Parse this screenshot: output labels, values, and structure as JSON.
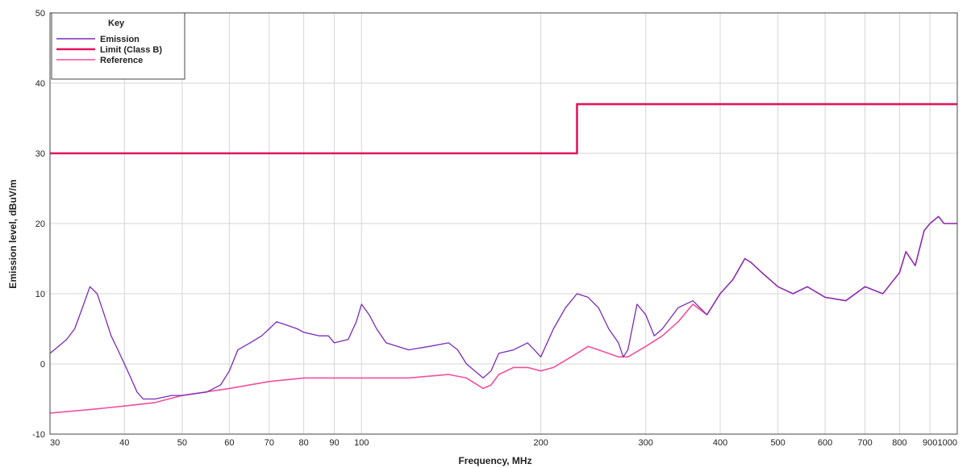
{
  "chart_data": {
    "type": "line",
    "title": "",
    "xlabel": "Frequency, MHz",
    "ylabel": "Emission level, dBuV/m",
    "xscale": "log",
    "xlim": [
      30,
      1000
    ],
    "ylim": [
      -10,
      50
    ],
    "x_ticks": [
      30,
      40,
      50,
      60,
      70,
      80,
      90,
      100,
      200,
      300,
      400,
      500,
      600,
      700,
      800,
      900,
      1000
    ],
    "y_ticks": [
      -10,
      0,
      10,
      20,
      30,
      40,
      50
    ],
    "grid": true,
    "legend": {
      "title": "Key",
      "position": "top-left"
    },
    "series": [
      {
        "name": "Emission",
        "color": "#7a2bb8",
        "x": [
          30,
          31,
          32,
          33,
          34,
          35,
          36,
          37,
          38,
          39,
          40,
          41,
          42,
          43,
          45,
          48,
          50,
          55,
          58,
          60,
          62,
          65,
          68,
          70,
          72,
          75,
          78,
          80,
          85,
          88,
          90,
          95,
          98,
          100,
          103,
          106,
          110,
          120,
          130,
          140,
          145,
          150,
          160,
          165,
          170,
          180,
          190,
          195,
          200,
          210,
          220,
          230,
          240,
          250,
          260,
          270,
          275,
          280,
          290,
          300,
          310,
          320,
          340,
          360,
          380,
          400,
          420,
          440,
          450,
          470,
          500,
          530,
          560,
          600,
          650,
          700,
          750,
          800,
          820,
          850,
          880,
          900,
          930,
          950,
          1000
        ],
        "values": [
          1.5,
          2.5,
          3.5,
          5,
          8,
          11,
          10,
          7,
          4,
          2,
          0,
          -2,
          -4,
          -5,
          -5,
          -4.5,
          -4.5,
          -4,
          -3,
          -1,
          2,
          3,
          4,
          5,
          6,
          5.5,
          5,
          4.5,
          4,
          4,
          3,
          3.5,
          6,
          8.5,
          7,
          5,
          3,
          2,
          2.5,
          3,
          2,
          0,
          -2,
          -1,
          1.5,
          2,
          3,
          2,
          1,
          5,
          8,
          10,
          9.5,
          8,
          5,
          3,
          1,
          2,
          8.5,
          7,
          4,
          5,
          8,
          9,
          7,
          10,
          12,
          15,
          14.5,
          13,
          11,
          10,
          11,
          9.5,
          9,
          11,
          10,
          13,
          16,
          14,
          19,
          20,
          21,
          20,
          20
        ]
      },
      {
        "name": "Limit (Class B)",
        "color": "#e0175e",
        "x": [
          30,
          230,
          230,
          1000
        ],
        "values": [
          30,
          30,
          37,
          37
        ]
      },
      {
        "name": "Reference",
        "color": "#f04fa0",
        "x": [
          30,
          35,
          40,
          45,
          50,
          60,
          70,
          80,
          90,
          100,
          120,
          140,
          150,
          160,
          165,
          170,
          180,
          190,
          200,
          210,
          230,
          240,
          250,
          270,
          280,
          300,
          320,
          340,
          360,
          380,
          400,
          420,
          440,
          450,
          470,
          500,
          530,
          560,
          600,
          650,
          700,
          750,
          800,
          820,
          850,
          880,
          900,
          930,
          950,
          1000
        ],
        "values": [
          -7,
          -6.5,
          -6,
          -5.5,
          -4.5,
          -3.5,
          -2.5,
          -2,
          -2,
          -2,
          -2,
          -1.5,
          -2,
          -3.5,
          -3,
          -1.5,
          -0.5,
          -0.5,
          -1,
          -0.5,
          1.5,
          2.5,
          2,
          1,
          1,
          2.5,
          4,
          6,
          8.5,
          7,
          10,
          12,
          15,
          14.5,
          13,
          11,
          10,
          11,
          9.5,
          9,
          11,
          10,
          13,
          16,
          14,
          19,
          20,
          21,
          20,
          20
        ]
      }
    ]
  }
}
